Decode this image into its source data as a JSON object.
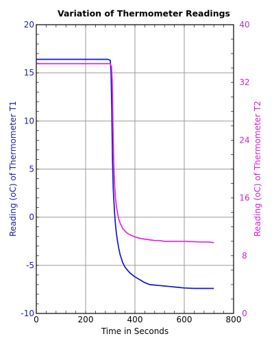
{
  "chart_data": {
    "type": "line",
    "title": "Variation of Thermometer Readings",
    "xlabel": "Time in Seconds",
    "ylabel_left": "Reading (oC) of Thermometer T1",
    "ylabel_right": "Reading (oC) of Thermometer T2",
    "xlim": [
      0,
      800
    ],
    "ylim_left": [
      -10,
      20
    ],
    "ylim_right": [
      0,
      40
    ],
    "x_ticks": [
      0,
      200,
      400,
      600,
      800
    ],
    "y_ticks_left": [
      -10,
      -5,
      0,
      5,
      10,
      15,
      20
    ],
    "y_ticks_right": [
      0,
      8,
      16,
      24,
      32,
      40
    ],
    "grid": true,
    "colors": {
      "series_t1": "#1414c8",
      "series_t2": "#e61ee6",
      "axis_left": "#1a1aa6",
      "axis_right": "#d21ed2",
      "grid": "#9a9a9a",
      "minor_tick": "#333333"
    },
    "series": [
      {
        "axis": "left",
        "x": [
          0,
          50,
          100,
          150,
          200,
          250,
          290,
          300,
          303,
          306,
          309,
          312,
          315,
          318,
          321,
          325,
          330,
          335,
          340,
          345,
          350,
          360,
          370,
          380,
          390,
          400,
          420,
          440,
          460,
          480,
          500,
          520,
          540,
          560,
          580,
          600,
          620,
          640,
          660,
          680,
          700,
          720
        ],
        "y": [
          16.4,
          16.4,
          16.4,
          16.4,
          16.4,
          16.4,
          16.4,
          16.3,
          15.0,
          11.0,
          6.0,
          3.0,
          1.5,
          0.2,
          -0.8,
          -1.7,
          -2.6,
          -3.3,
          -3.9,
          -4.3,
          -4.7,
          -5.2,
          -5.5,
          -5.8,
          -6.0,
          -6.2,
          -6.5,
          -6.8,
          -7.0,
          -7.05,
          -7.1,
          -7.15,
          -7.2,
          -7.25,
          -7.3,
          -7.35,
          -7.38,
          -7.4,
          -7.4,
          -7.4,
          -7.4,
          -7.4
        ]
      },
      {
        "axis": "right",
        "x": [
          0,
          50,
          100,
          150,
          200,
          250,
          290,
          300,
          305,
          308,
          310,
          312,
          314,
          316,
          318,
          321,
          325,
          330,
          335,
          340,
          350,
          360,
          370,
          380,
          400,
          420,
          440,
          460,
          480,
          500,
          520,
          540,
          560,
          580,
          600,
          620,
          640,
          660,
          680,
          700,
          720
        ],
        "y": [
          34.6,
          34.6,
          34.6,
          34.6,
          34.6,
          34.6,
          34.6,
          34.6,
          34.2,
          32.0,
          28.0,
          24.0,
          21.0,
          19.0,
          17.5,
          16.0,
          14.8,
          13.8,
          13.0,
          12.5,
          11.8,
          11.4,
          11.1,
          10.9,
          10.6,
          10.4,
          10.3,
          10.2,
          10.1,
          10.1,
          10.0,
          10.0,
          10.0,
          10.0,
          10.0,
          9.95,
          9.95,
          9.9,
          9.9,
          9.9,
          9.8
        ]
      }
    ]
  }
}
